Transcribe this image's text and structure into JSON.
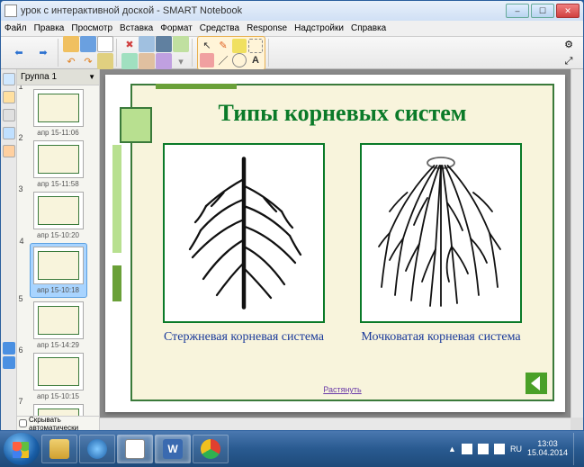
{
  "window": {
    "title": "урок с интерактивной доской - SMART Notebook",
    "minimize": "–",
    "maximize": "☐",
    "close": "✕"
  },
  "menu": {
    "items": [
      "Файл",
      "Правка",
      "Просмотр",
      "Вставка",
      "Формат",
      "Средства",
      "Response",
      "Надстройки",
      "Справка"
    ]
  },
  "thumbs": {
    "group": "Группа 1",
    "items": [
      {
        "n": "1",
        "label": "апр 15-11:06"
      },
      {
        "n": "2",
        "label": "апр 15-11:58"
      },
      {
        "n": "3",
        "label": "апр 15-10:20"
      },
      {
        "n": "4",
        "label": "апр 15-10:18",
        "selected": true
      },
      {
        "n": "5",
        "label": "апр 15-14:29"
      },
      {
        "n": "6",
        "label": "апр 15-10:15"
      },
      {
        "n": "7",
        "label": "апр 15-11:53"
      }
    ],
    "hide_auto": "Скрывать автоматически"
  },
  "slide": {
    "title": "Типы корневых систем",
    "caption_left": "Стержневая корневая система",
    "caption_right": "Мочковатая корневая система",
    "expand": "Растянуть",
    "colors": {
      "border": "#3a7a3a",
      "bg": "#f8f4dc",
      "title": "#0a7a28",
      "caption": "#1a3a9a",
      "accent": "#b8e090"
    }
  },
  "taskbar": {
    "lang": "RU",
    "time": "13:03",
    "date": "15.04.2014"
  }
}
